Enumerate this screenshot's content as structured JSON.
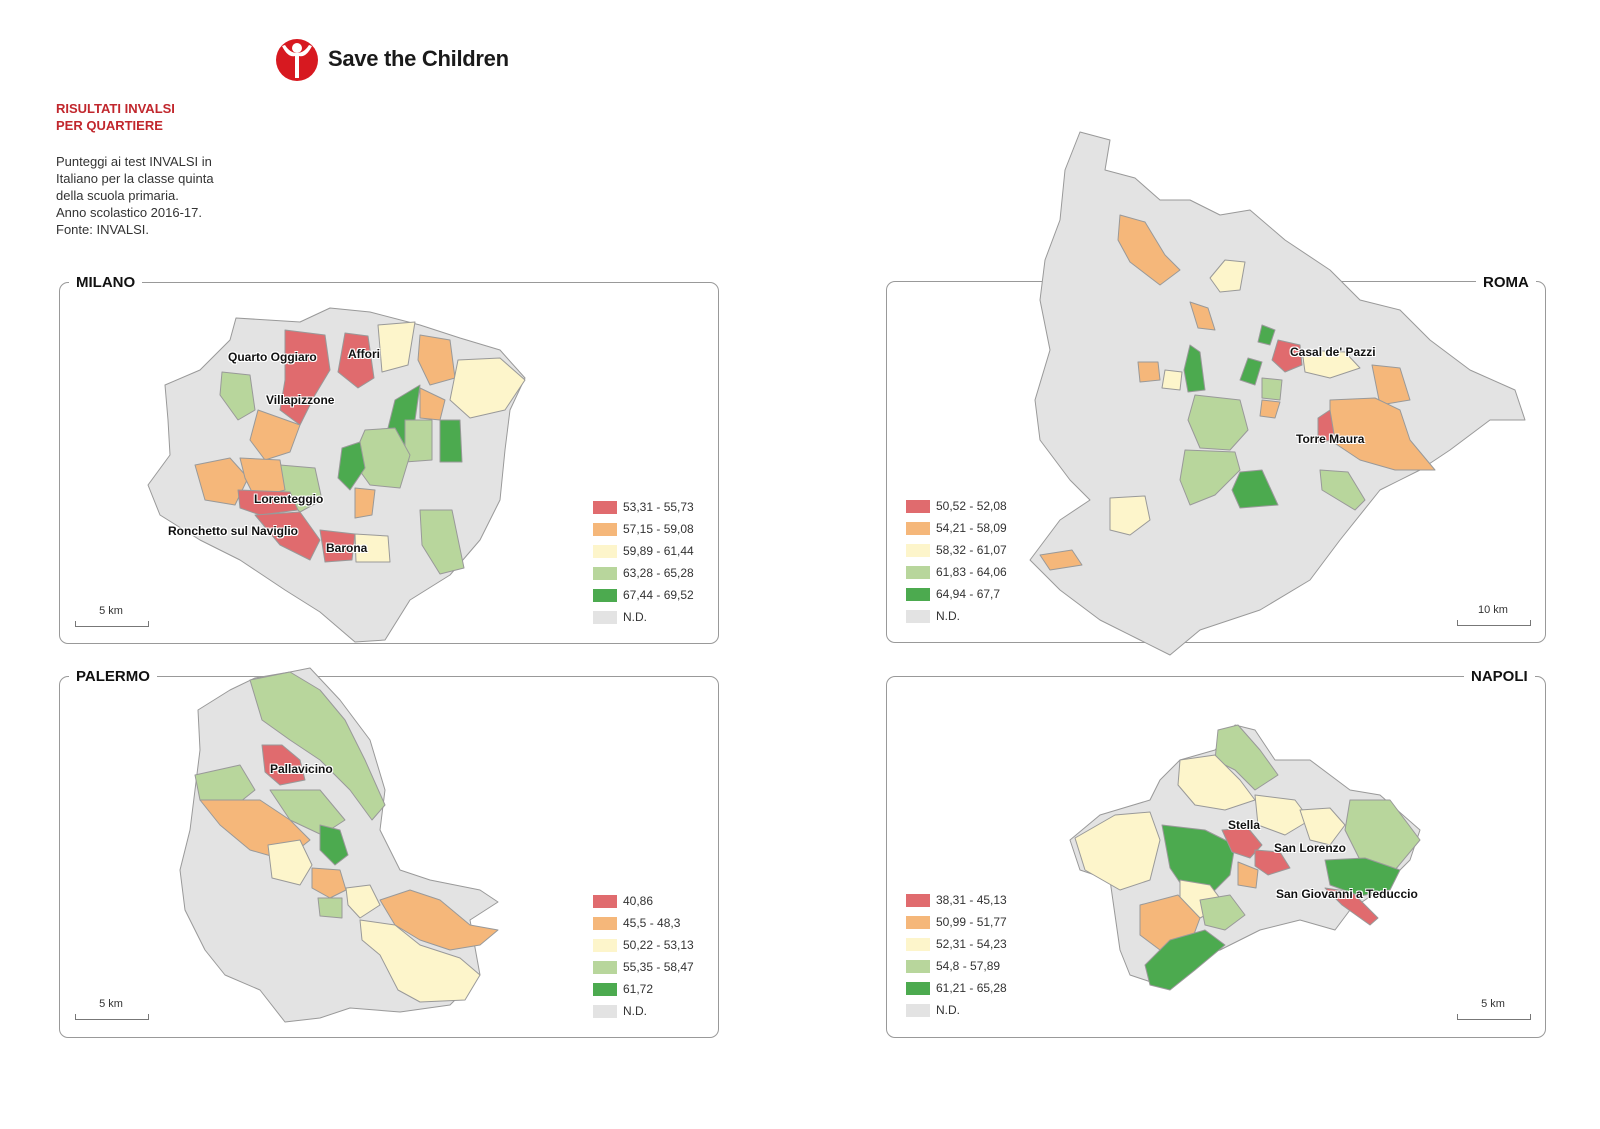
{
  "brand": {
    "name": "Save the Children",
    "logo_color": "#d71920"
  },
  "header": {
    "title_line1": "RISULTATI INVALSI",
    "title_line2": "PER QUARTIERE",
    "subtitle_lines": [
      "Punteggi ai test INVALSI in",
      "Italiano per la classe quinta",
      "della scuola primaria.",
      "Anno scolastico 2016-17.",
      "Fonte: INVALSI."
    ]
  },
  "palette": {
    "red": "#e06b6e",
    "orange": "#f5b77a",
    "yellow": "#fdf5cb",
    "lightgreen": "#b8d69c",
    "green": "#4caa4f",
    "nd": "#e3e3e3",
    "border": "#999999"
  },
  "maps": {
    "milano": {
      "title": "MILANO",
      "scale": "5 km",
      "labels": [
        "Quarto Oggiaro",
        "Affori",
        "Villapizzone",
        "Lorenteggio",
        "Ronchetto sul Naviglio",
        "Barona"
      ],
      "legend": [
        "53,31 - 55,73",
        "57,15 - 59,08",
        "59,89 - 61,44",
        "63,28 - 65,28",
        "67,44 - 69,52",
        "N.D."
      ]
    },
    "roma": {
      "title": "ROMA",
      "scale": "10 km",
      "labels": [
        "Casal de' Pazzi",
        "Torre Maura"
      ],
      "legend": [
        "50,52 - 52,08",
        "54,21 - 58,09",
        "58,32 - 61,07",
        "61,83 - 64,06",
        "64,94 - 67,7",
        "N.D."
      ]
    },
    "palermo": {
      "title": "PALERMO",
      "scale": "5 km",
      "labels": [
        "Pallavicino"
      ],
      "legend": [
        "40,86",
        "45,5 - 48,3",
        "50,22 - 53,13",
        "55,35 - 58,47",
        "61,72",
        "N.D."
      ]
    },
    "napoli": {
      "title": "NAPOLI",
      "scale": "5 km",
      "labels": [
        "Stella",
        "San Lorenzo",
        "San Giovanni a Teduccio"
      ],
      "legend": [
        "38,31 - 45,13",
        "50,99 - 51,77",
        "52,31 - 54,23",
        "54,8 - 57,89",
        "61,21 - 65,28",
        "N.D."
      ]
    }
  }
}
